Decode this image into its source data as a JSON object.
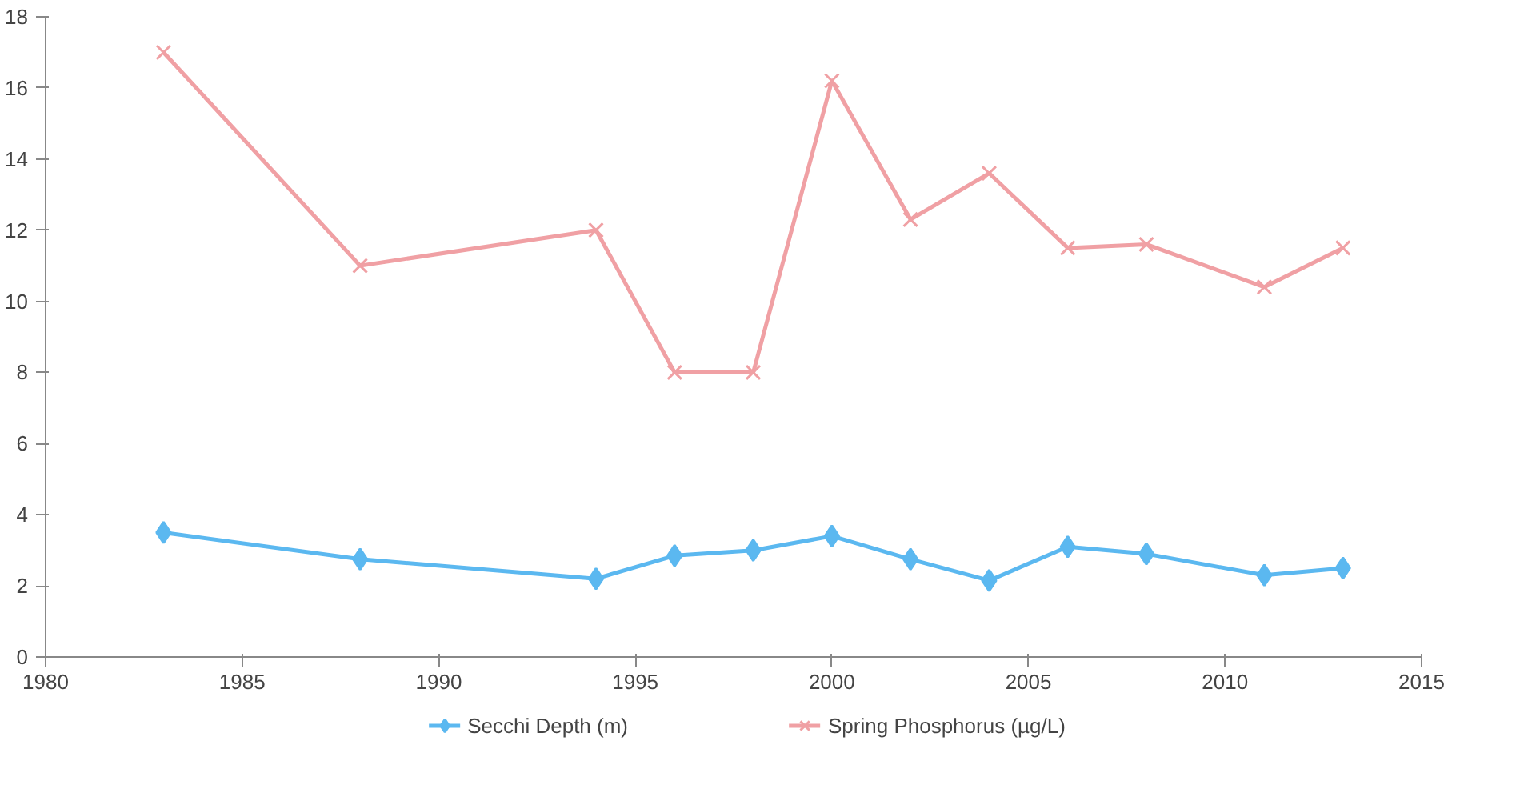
{
  "chart_data": {
    "type": "line",
    "x": [
      1983,
      1988,
      1994,
      1996,
      1998,
      2000,
      2002,
      2004,
      2006,
      2008,
      2011,
      2013
    ],
    "series": [
      {
        "name": "Secchi Depth (m)",
        "color": "#5bb8f0",
        "marker": "diamond",
        "values": [
          3.5,
          2.75,
          2.2,
          2.85,
          3.0,
          3.4,
          2.75,
          2.15,
          3.1,
          2.9,
          2.3,
          2.5
        ]
      },
      {
        "name": "Spring Phosphorus (µg/L)",
        "color": "#f0a0a4",
        "marker": "cross",
        "values": [
          17.0,
          11.0,
          12.0,
          8.0,
          8.0,
          16.2,
          12.3,
          13.6,
          11.5,
          11.6,
          10.4,
          11.5
        ]
      }
    ],
    "xlim": [
      1980,
      2015
    ],
    "xticks": [
      1980,
      1985,
      1990,
      1995,
      2000,
      2005,
      2010,
      2015
    ],
    "ylim": [
      0,
      18
    ],
    "yticks": [
      0,
      2,
      4,
      6,
      8,
      10,
      12,
      14,
      16,
      18
    ],
    "grid": false,
    "legend": "bottom",
    "line_style": "solid"
  }
}
